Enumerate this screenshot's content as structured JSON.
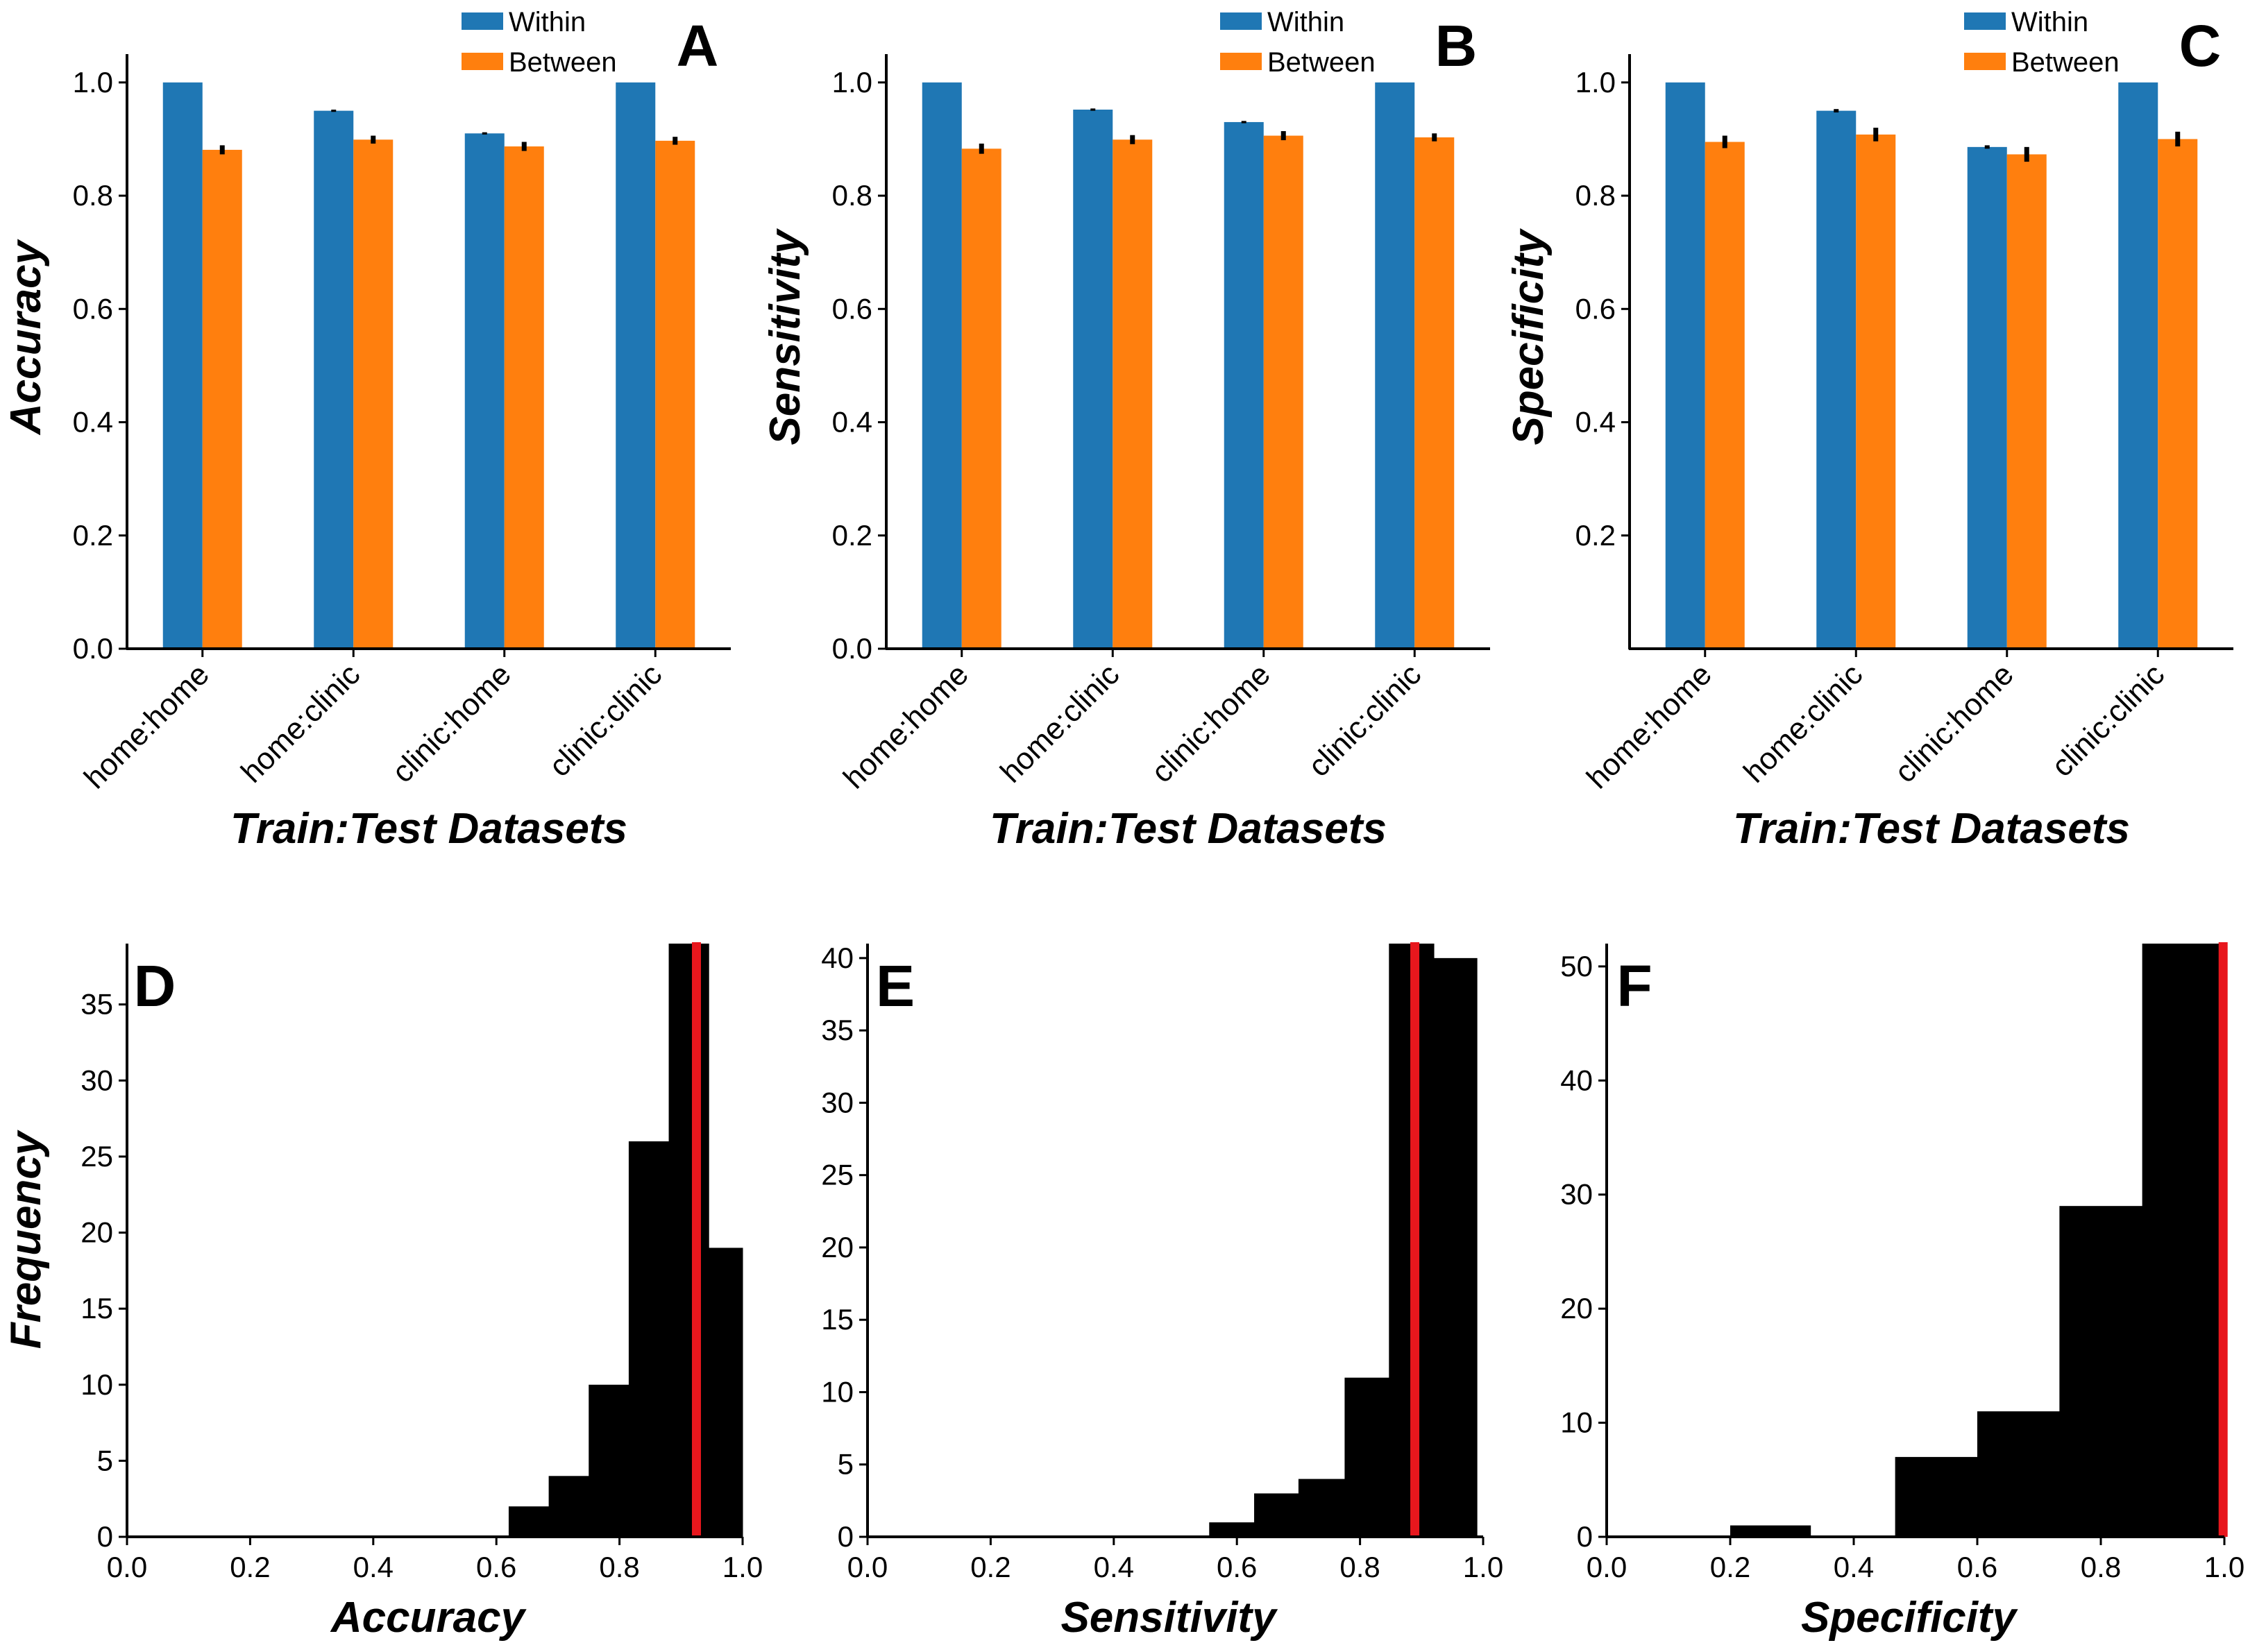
{
  "colors": {
    "within": "#1f77b4",
    "between": "#ff7f0e",
    "hist": "#000000",
    "marker": "#e8171d"
  },
  "chart_data": [
    {
      "type": "bar",
      "panel": "A",
      "ylabel": "Accuracy",
      "xlabel": "Train:Test Datasets",
      "categories": [
        "home:home",
        "home:clinic",
        "clinic:home",
        "clinic:clinic"
      ],
      "series": [
        {
          "name": "Within",
          "values": [
            1.0,
            0.95,
            0.91,
            1.0
          ],
          "errors": [
            0.0,
            0.002,
            0.002,
            0.0
          ]
        },
        {
          "name": "Between",
          "values": [
            0.881,
            0.899,
            0.887,
            0.897
          ],
          "errors": [
            0.008,
            0.007,
            0.008,
            0.007
          ]
        }
      ],
      "ylim": [
        0,
        1.05
      ],
      "yticks": [
        "0.0",
        "0.2",
        "0.4",
        "0.6",
        "0.8",
        "1.0"
      ],
      "legend": "top-right"
    },
    {
      "type": "bar",
      "panel": "B",
      "ylabel": "Sensitivity",
      "xlabel": "Train:Test Datasets",
      "categories": [
        "home:home",
        "home:clinic",
        "clinic:home",
        "clinic:clinic"
      ],
      "series": [
        {
          "name": "Within",
          "values": [
            1.0,
            0.952,
            0.93,
            1.0
          ],
          "errors": [
            0.0,
            0.002,
            0.002,
            0.0
          ]
        },
        {
          "name": "Between",
          "values": [
            0.883,
            0.899,
            0.906,
            0.903
          ],
          "errors": [
            0.009,
            0.008,
            0.008,
            0.007
          ]
        }
      ],
      "ylim": [
        0,
        1.05
      ],
      "yticks": [
        "0.0",
        "0.2",
        "0.4",
        "0.6",
        "0.8",
        "1.0"
      ],
      "legend": "top-right"
    },
    {
      "type": "bar",
      "panel": "C",
      "ylabel": "Specificity",
      "xlabel": "Train:Test Datasets",
      "categories": [
        "home:home",
        "home:clinic",
        "clinic:home",
        "clinic:clinic"
      ],
      "series": [
        {
          "name": "Within",
          "values": [
            1.0,
            0.95,
            0.886,
            1.0
          ],
          "errors": [
            0.0,
            0.003,
            0.003,
            0.0
          ]
        },
        {
          "name": "Between",
          "values": [
            0.895,
            0.908,
            0.873,
            0.9
          ],
          "errors": [
            0.011,
            0.012,
            0.013,
            0.013
          ]
        }
      ],
      "ylim": [
        0,
        1.05
      ],
      "yticks": [
        "0.2",
        "0.4",
        "0.6",
        "0.8",
        "1.0"
      ],
      "legend": "top-right"
    },
    {
      "type": "histogram",
      "panel": "D",
      "xlabel": "Accuracy",
      "ylabel": "Frequency",
      "bin_edges": [
        0.62,
        0.685,
        0.75,
        0.815,
        0.88,
        0.945,
        1.0
      ],
      "counts": [
        2,
        4,
        10,
        26,
        39,
        19
      ],
      "marker_line": 0.925,
      "xlim": [
        0.0,
        1.0
      ],
      "ylim": [
        0,
        39
      ],
      "xticks": [
        "0.0",
        "0.2",
        "0.4",
        "0.6",
        "0.8",
        "1.0"
      ],
      "yticks": [
        "0",
        "5",
        "10",
        "15",
        "20",
        "25",
        "30",
        "35"
      ]
    },
    {
      "type": "histogram",
      "panel": "E",
      "xlabel": "Sensitivity",
      "ylabel": "",
      "bin_edges": [
        0.555,
        0.628,
        0.7,
        0.775,
        0.847,
        0.92,
        0.99
      ],
      "counts": [
        1,
        3,
        4,
        11,
        41,
        40
      ],
      "marker_line": 0.889,
      "xlim": [
        0.0,
        1.0
      ],
      "ylim": [
        0,
        41
      ],
      "xticks": [
        "0.0",
        "0.2",
        "0.4",
        "0.6",
        "0.8",
        "1.0"
      ],
      "yticks": [
        "0",
        "5",
        "10",
        "15",
        "20",
        "25",
        "30",
        "35",
        "40"
      ]
    },
    {
      "type": "histogram",
      "panel": "F",
      "xlabel": "Specificity",
      "ylabel": "",
      "bin_edges": [
        0.2,
        0.33,
        0.467,
        0.6,
        0.733,
        0.867,
        1.0
      ],
      "counts": [
        1,
        0,
        7,
        11,
        29,
        52
      ],
      "marker_line": 0.998,
      "xlim": [
        0.0,
        1.0
      ],
      "ylim": [
        0,
        52
      ],
      "xticks": [
        "0.0",
        "0.2",
        "0.4",
        "0.6",
        "0.8",
        "1.0"
      ],
      "yticks": [
        "0",
        "10",
        "20",
        "30",
        "40",
        "50"
      ]
    }
  ]
}
